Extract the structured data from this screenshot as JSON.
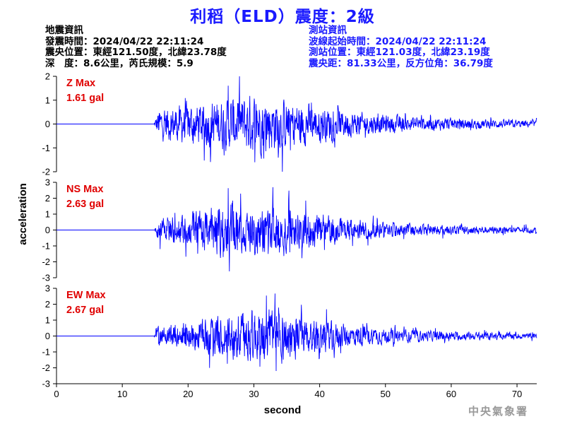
{
  "title": "利稻（ELD）震度：2級",
  "event_info": {
    "heading": "地震資訊",
    "origin_time": "發震時間：2024/04/22 22:11:24",
    "epicenter": "震央位置：東經121.50度，北緯23.78度",
    "depth_magnitude": "深　度：8.6公里，芮氏規模：5.9"
  },
  "station_info": {
    "heading": "測站資訊",
    "wave_start": "波線起始時間：2024/04/22 22:11:24",
    "location": "測站位置：東經121.03度，北緯23.19度",
    "distance": "震央距：81.33公里，反方位角：36.79度"
  },
  "watermark": "中央氣象署",
  "colors": {
    "title": "#1a1aff",
    "trace": "#0000ff",
    "peak_label": "#e00000",
    "axis": "#000000"
  },
  "chart_data": {
    "type": "line",
    "xlabel": "second",
    "ylabel": "acceleration",
    "xlim": [
      0,
      73
    ],
    "xticks": [
      0,
      10,
      20,
      30,
      40,
      50,
      60,
      70
    ],
    "grid": false,
    "panels": [
      {
        "component": "Z",
        "label": "Z Max",
        "max_label": "1.61 gal",
        "ylim": [
          -2,
          2
        ],
        "yticks": [
          -2,
          -1,
          0,
          1,
          2
        ],
        "onset": 14.8,
        "envelope": [
          [
            0,
            0
          ],
          [
            14.8,
            0
          ],
          [
            15.5,
            0.55
          ],
          [
            20,
            0.7
          ],
          [
            26,
            0.9
          ],
          [
            30,
            1.05
          ],
          [
            33,
            0.95
          ],
          [
            37,
            0.75
          ],
          [
            42,
            0.55
          ],
          [
            48,
            0.35
          ],
          [
            55,
            0.25
          ],
          [
            65,
            0.16
          ],
          [
            73,
            0.12
          ]
        ],
        "peaks": [
          [
            26.1,
            1.61
          ],
          [
            31.5,
            -1.45
          ]
        ]
      },
      {
        "component": "NS",
        "label": "NS Max",
        "max_label": "2.63 gal",
        "ylim": [
          -3,
          3
        ],
        "yticks": [
          -3,
          -2,
          -1,
          0,
          1,
          2,
          3
        ],
        "onset": 14.8,
        "envelope": [
          [
            0,
            0
          ],
          [
            14.8,
            0
          ],
          [
            15.5,
            0.6
          ],
          [
            20,
            0.8
          ],
          [
            26,
            1.5
          ],
          [
            30,
            1.4
          ],
          [
            34,
            1.3
          ],
          [
            38,
            1.0
          ],
          [
            42,
            0.7
          ],
          [
            48,
            0.45
          ],
          [
            55,
            0.3
          ],
          [
            65,
            0.2
          ],
          [
            73,
            0.16
          ]
        ],
        "peaks": [
          [
            26.1,
            2.63
          ],
          [
            26.3,
            -2.6
          ]
        ]
      },
      {
        "component": "EW",
        "label": "EW Max",
        "max_label": "2.67 gal",
        "ylim": [
          -3,
          3
        ],
        "yticks": [
          -3,
          -2,
          -1,
          0,
          1,
          2,
          3
        ],
        "onset": 14.8,
        "envelope": [
          [
            0,
            0
          ],
          [
            14.8,
            0
          ],
          [
            15.5,
            0.55
          ],
          [
            20,
            0.75
          ],
          [
            26,
            1.2
          ],
          [
            30,
            1.4
          ],
          [
            33,
            1.5
          ],
          [
            37,
            1.1
          ],
          [
            42,
            0.75
          ],
          [
            48,
            0.45
          ],
          [
            55,
            0.3
          ],
          [
            65,
            0.2
          ],
          [
            73,
            0.15
          ]
        ],
        "peaks": [
          [
            33.2,
            2.67
          ],
          [
            33.4,
            -2.2
          ]
        ]
      }
    ]
  }
}
